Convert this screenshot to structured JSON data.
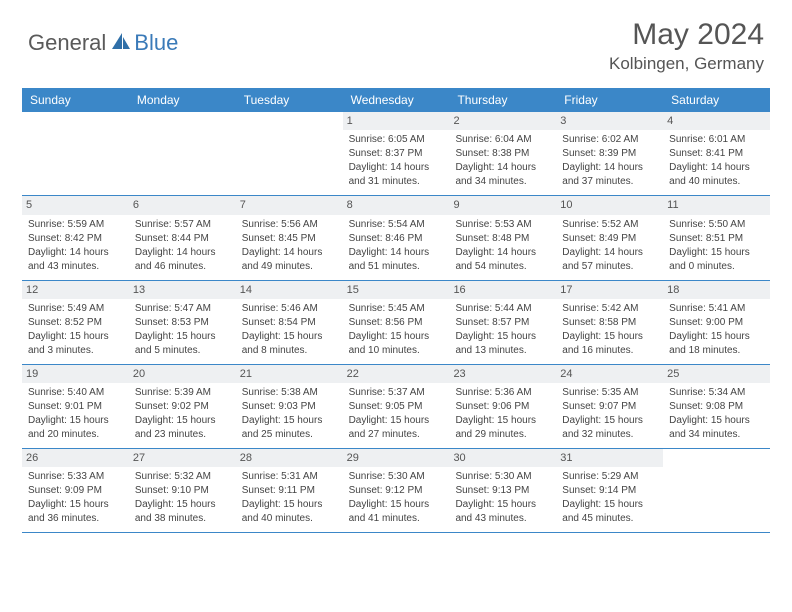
{
  "brand": {
    "general": "General",
    "blue": "Blue"
  },
  "title": "May 2024",
  "location": "Kolbingen, Germany",
  "header_bg": "#3b87c8",
  "row_border": "#3b87c8",
  "daynum_bg": "#eef0f2",
  "weekdays": [
    "Sunday",
    "Monday",
    "Tuesday",
    "Wednesday",
    "Thursday",
    "Friday",
    "Saturday"
  ],
  "weeks": [
    [
      null,
      null,
      null,
      {
        "n": "1",
        "sr": "Sunrise: 6:05 AM",
        "ss": "Sunset: 8:37 PM",
        "d1": "Daylight: 14 hours",
        "d2": "and 31 minutes."
      },
      {
        "n": "2",
        "sr": "Sunrise: 6:04 AM",
        "ss": "Sunset: 8:38 PM",
        "d1": "Daylight: 14 hours",
        "d2": "and 34 minutes."
      },
      {
        "n": "3",
        "sr": "Sunrise: 6:02 AM",
        "ss": "Sunset: 8:39 PM",
        "d1": "Daylight: 14 hours",
        "d2": "and 37 minutes."
      },
      {
        "n": "4",
        "sr": "Sunrise: 6:01 AM",
        "ss": "Sunset: 8:41 PM",
        "d1": "Daylight: 14 hours",
        "d2": "and 40 minutes."
      }
    ],
    [
      {
        "n": "5",
        "sr": "Sunrise: 5:59 AM",
        "ss": "Sunset: 8:42 PM",
        "d1": "Daylight: 14 hours",
        "d2": "and 43 minutes."
      },
      {
        "n": "6",
        "sr": "Sunrise: 5:57 AM",
        "ss": "Sunset: 8:44 PM",
        "d1": "Daylight: 14 hours",
        "d2": "and 46 minutes."
      },
      {
        "n": "7",
        "sr": "Sunrise: 5:56 AM",
        "ss": "Sunset: 8:45 PM",
        "d1": "Daylight: 14 hours",
        "d2": "and 49 minutes."
      },
      {
        "n": "8",
        "sr": "Sunrise: 5:54 AM",
        "ss": "Sunset: 8:46 PM",
        "d1": "Daylight: 14 hours",
        "d2": "and 51 minutes."
      },
      {
        "n": "9",
        "sr": "Sunrise: 5:53 AM",
        "ss": "Sunset: 8:48 PM",
        "d1": "Daylight: 14 hours",
        "d2": "and 54 minutes."
      },
      {
        "n": "10",
        "sr": "Sunrise: 5:52 AM",
        "ss": "Sunset: 8:49 PM",
        "d1": "Daylight: 14 hours",
        "d2": "and 57 minutes."
      },
      {
        "n": "11",
        "sr": "Sunrise: 5:50 AM",
        "ss": "Sunset: 8:51 PM",
        "d1": "Daylight: 15 hours",
        "d2": "and 0 minutes."
      }
    ],
    [
      {
        "n": "12",
        "sr": "Sunrise: 5:49 AM",
        "ss": "Sunset: 8:52 PM",
        "d1": "Daylight: 15 hours",
        "d2": "and 3 minutes."
      },
      {
        "n": "13",
        "sr": "Sunrise: 5:47 AM",
        "ss": "Sunset: 8:53 PM",
        "d1": "Daylight: 15 hours",
        "d2": "and 5 minutes."
      },
      {
        "n": "14",
        "sr": "Sunrise: 5:46 AM",
        "ss": "Sunset: 8:54 PM",
        "d1": "Daylight: 15 hours",
        "d2": "and 8 minutes."
      },
      {
        "n": "15",
        "sr": "Sunrise: 5:45 AM",
        "ss": "Sunset: 8:56 PM",
        "d1": "Daylight: 15 hours",
        "d2": "and 10 minutes."
      },
      {
        "n": "16",
        "sr": "Sunrise: 5:44 AM",
        "ss": "Sunset: 8:57 PM",
        "d1": "Daylight: 15 hours",
        "d2": "and 13 minutes."
      },
      {
        "n": "17",
        "sr": "Sunrise: 5:42 AM",
        "ss": "Sunset: 8:58 PM",
        "d1": "Daylight: 15 hours",
        "d2": "and 16 minutes."
      },
      {
        "n": "18",
        "sr": "Sunrise: 5:41 AM",
        "ss": "Sunset: 9:00 PM",
        "d1": "Daylight: 15 hours",
        "d2": "and 18 minutes."
      }
    ],
    [
      {
        "n": "19",
        "sr": "Sunrise: 5:40 AM",
        "ss": "Sunset: 9:01 PM",
        "d1": "Daylight: 15 hours",
        "d2": "and 20 minutes."
      },
      {
        "n": "20",
        "sr": "Sunrise: 5:39 AM",
        "ss": "Sunset: 9:02 PM",
        "d1": "Daylight: 15 hours",
        "d2": "and 23 minutes."
      },
      {
        "n": "21",
        "sr": "Sunrise: 5:38 AM",
        "ss": "Sunset: 9:03 PM",
        "d1": "Daylight: 15 hours",
        "d2": "and 25 minutes."
      },
      {
        "n": "22",
        "sr": "Sunrise: 5:37 AM",
        "ss": "Sunset: 9:05 PM",
        "d1": "Daylight: 15 hours",
        "d2": "and 27 minutes."
      },
      {
        "n": "23",
        "sr": "Sunrise: 5:36 AM",
        "ss": "Sunset: 9:06 PM",
        "d1": "Daylight: 15 hours",
        "d2": "and 29 minutes."
      },
      {
        "n": "24",
        "sr": "Sunrise: 5:35 AM",
        "ss": "Sunset: 9:07 PM",
        "d1": "Daylight: 15 hours",
        "d2": "and 32 minutes."
      },
      {
        "n": "25",
        "sr": "Sunrise: 5:34 AM",
        "ss": "Sunset: 9:08 PM",
        "d1": "Daylight: 15 hours",
        "d2": "and 34 minutes."
      }
    ],
    [
      {
        "n": "26",
        "sr": "Sunrise: 5:33 AM",
        "ss": "Sunset: 9:09 PM",
        "d1": "Daylight: 15 hours",
        "d2": "and 36 minutes."
      },
      {
        "n": "27",
        "sr": "Sunrise: 5:32 AM",
        "ss": "Sunset: 9:10 PM",
        "d1": "Daylight: 15 hours",
        "d2": "and 38 minutes."
      },
      {
        "n": "28",
        "sr": "Sunrise: 5:31 AM",
        "ss": "Sunset: 9:11 PM",
        "d1": "Daylight: 15 hours",
        "d2": "and 40 minutes."
      },
      {
        "n": "29",
        "sr": "Sunrise: 5:30 AM",
        "ss": "Sunset: 9:12 PM",
        "d1": "Daylight: 15 hours",
        "d2": "and 41 minutes."
      },
      {
        "n": "30",
        "sr": "Sunrise: 5:30 AM",
        "ss": "Sunset: 9:13 PM",
        "d1": "Daylight: 15 hours",
        "d2": "and 43 minutes."
      },
      {
        "n": "31",
        "sr": "Sunrise: 5:29 AM",
        "ss": "Sunset: 9:14 PM",
        "d1": "Daylight: 15 hours",
        "d2": "and 45 minutes."
      },
      null
    ]
  ]
}
